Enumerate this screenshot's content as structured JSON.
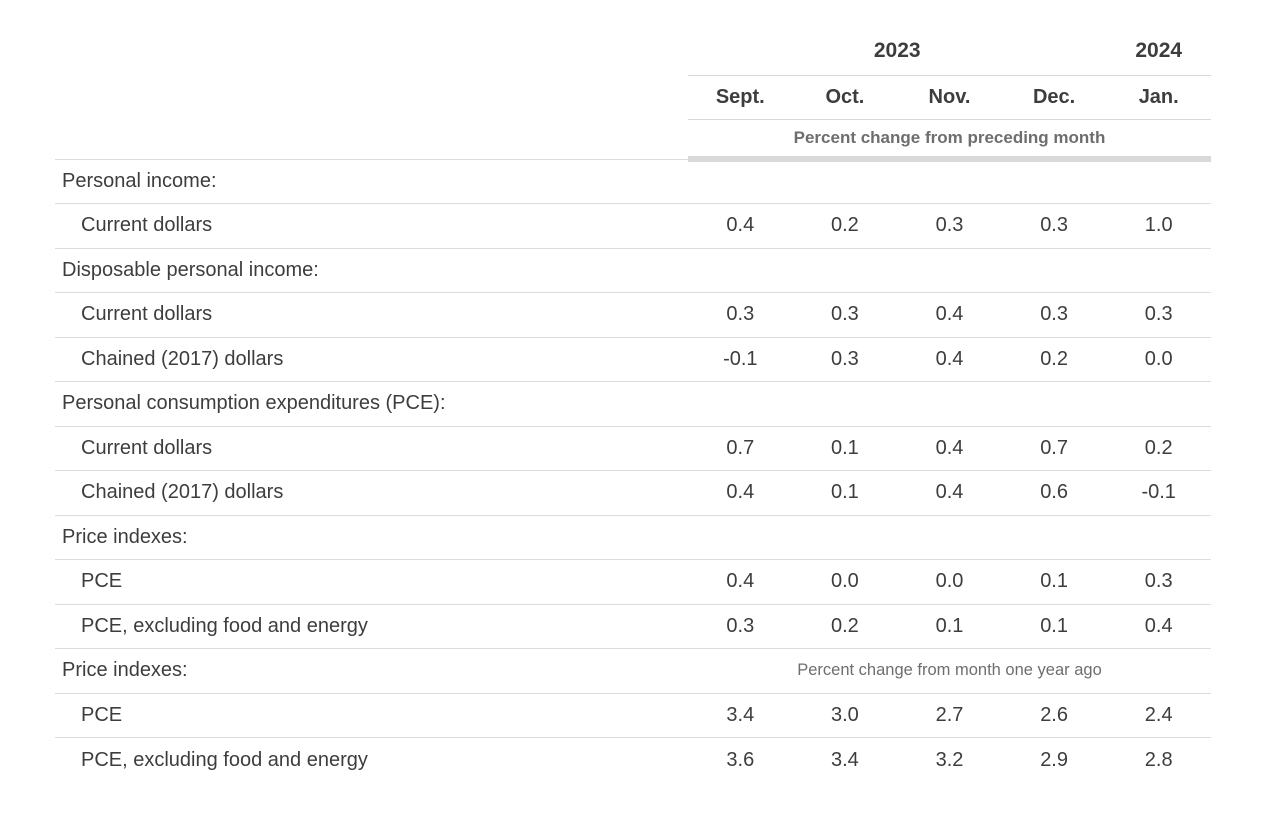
{
  "colors": {
    "background": "#ffffff",
    "text_dark": "#3d3d3d",
    "text_gray": "#6e6e6e",
    "row_border": "#dcdcdc",
    "header_rule": "#d8d8d8",
    "header_bar": "#d9d9d9"
  },
  "chart_data": {
    "type": "table",
    "year_groups": [
      {
        "label": "2023",
        "span": 4
      },
      {
        "label": "2024",
        "span": 1
      }
    ],
    "columns": [
      "Sept.",
      "Oct.",
      "Nov.",
      "Dec.",
      "Jan."
    ],
    "unit_note_top": "Percent change from preceding month",
    "unit_note_bottom": "Percent change from month one year ago",
    "rows": [
      {
        "kind": "section",
        "label": "Personal income:"
      },
      {
        "kind": "data",
        "label": "Current dollars",
        "values": [
          "0.4",
          "0.2",
          "0.3",
          "0.3",
          "1.0"
        ]
      },
      {
        "kind": "section",
        "label": "Disposable personal income:"
      },
      {
        "kind": "data",
        "label": "Current dollars",
        "values": [
          "0.3",
          "0.3",
          "0.4",
          "0.3",
          "0.3"
        ]
      },
      {
        "kind": "data",
        "label": "Chained (2017) dollars",
        "values": [
          "-0.1",
          "0.3",
          "0.4",
          "0.2",
          "0.0"
        ]
      },
      {
        "kind": "section",
        "label": "Personal consumption expenditures (PCE):"
      },
      {
        "kind": "data",
        "label": "Current dollars",
        "values": [
          "0.7",
          "0.1",
          "0.4",
          "0.7",
          "0.2"
        ]
      },
      {
        "kind": "data",
        "label": "Chained (2017) dollars",
        "values": [
          "0.4",
          "0.1",
          "0.4",
          "0.6",
          "-0.1"
        ]
      },
      {
        "kind": "section",
        "label": "Price indexes:"
      },
      {
        "kind": "data",
        "label": "PCE",
        "values": [
          "0.4",
          "0.0",
          "0.0",
          "0.1",
          "0.3"
        ]
      },
      {
        "kind": "data",
        "label": "PCE, excluding food and energy",
        "values": [
          "0.3",
          "0.2",
          "0.1",
          "0.1",
          "0.4"
        ]
      },
      {
        "kind": "section",
        "label": "Price indexes:",
        "note": "Percent change from month one year ago"
      },
      {
        "kind": "data",
        "label": "PCE",
        "values": [
          "3.4",
          "3.0",
          "2.7",
          "2.6",
          "2.4"
        ]
      },
      {
        "kind": "data",
        "label": "PCE, excluding food and energy",
        "values": [
          "3.6",
          "3.4",
          "3.2",
          "2.9",
          "2.8"
        ]
      }
    ]
  }
}
